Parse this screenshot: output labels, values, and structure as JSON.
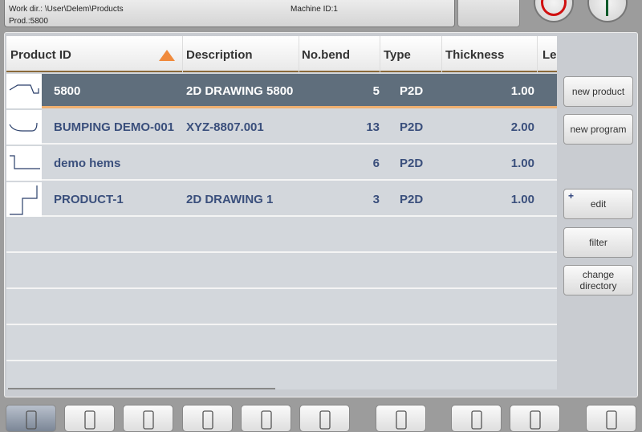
{
  "header": {
    "work_dir": "Work dir.: \\User\\Delem\\Products",
    "machine_id": "Machine ID:1",
    "prod": "Prod.:5800"
  },
  "table": {
    "columns": [
      "Product ID",
      "Description",
      "No.bend",
      "Type",
      "Thickness",
      "Le"
    ],
    "sort_column": "Product ID",
    "sort_direction": "ascending",
    "rows": [
      {
        "id": "5800",
        "description": "2D DRAWING 5800",
        "bends": "5",
        "type": "P2D",
        "thickness": "1.00",
        "selected": true
      },
      {
        "id": "BUMPING DEMO-001",
        "description": "XYZ-8807.001",
        "bends": "13",
        "type": "P2D",
        "thickness": "2.00"
      },
      {
        "id": "demo hems",
        "description": "",
        "bends": "6",
        "type": "P2D",
        "thickness": "1.00"
      },
      {
        "id": "PRODUCT-1",
        "description": "2D DRAWING 1",
        "bends": "3",
        "type": "P2D",
        "thickness": "1.00"
      }
    ]
  },
  "side_buttons": {
    "new_product": "new product",
    "new_program": "new program",
    "edit": "edit",
    "edit_plus": "+",
    "filter": "filter",
    "change_directory": "change directory"
  },
  "bottom_nav": [
    "products-icon",
    "draw-icon",
    "tools-icon",
    "bend-icon",
    "programs-icon",
    "auto-icon",
    "manual-icon",
    "list-icon",
    "machine-icon",
    "help-icon"
  ],
  "colors": {
    "selected_row": "#5f6e7c",
    "accent": "#f08a3c",
    "stop": "#d01010",
    "start": "#0a5a2a"
  }
}
